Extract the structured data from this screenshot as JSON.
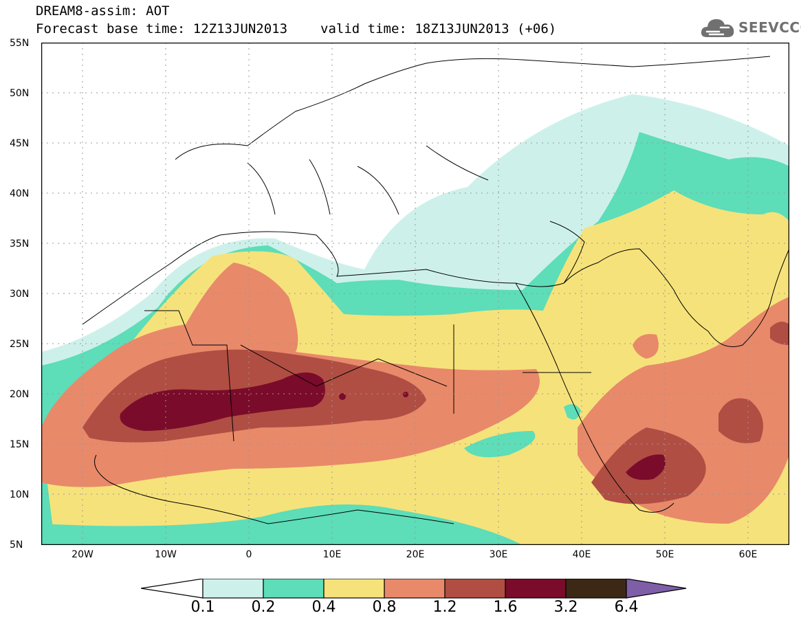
{
  "header": {
    "title": "DREAM8-assim: AOT",
    "base_time": "Forecast base time: 12Z13JUN2013",
    "valid_time": "valid time: 18Z13JUN2013 (+06)"
  },
  "logo": {
    "text": "SEEVCCC",
    "icon": "cloud-icon"
  },
  "axes": {
    "lat_labels": [
      "55N",
      "50N",
      "45N",
      "40N",
      "35N",
      "30N",
      "25N",
      "20N",
      "15N",
      "10N",
      "5N"
    ],
    "lon_labels": [
      "20W",
      "10W",
      "0",
      "10E",
      "20E",
      "30E",
      "40E",
      "50E",
      "60E"
    ],
    "lon_range": [
      -25,
      65
    ],
    "lat_range": [
      5,
      55
    ]
  },
  "colorbar": {
    "levels": [
      "0.1",
      "0.2",
      "0.4",
      "0.8",
      "1.2",
      "1.6",
      "3.2",
      "6.4"
    ],
    "colors": [
      "#ffffff",
      "#cdf1ea",
      "#5dddb8",
      "#f6e27a",
      "#e8896a",
      "#b04e43",
      "#7a0b2a",
      "#3d2816",
      "#7e5ea7"
    ]
  },
  "fill_colors": {
    "c01": "#cdf1ea",
    "c02": "#5dddb8",
    "c04": "#f6e27a",
    "c08": "#e8896a",
    "c12": "#b04e43",
    "c16": "#7a0b2a"
  }
}
